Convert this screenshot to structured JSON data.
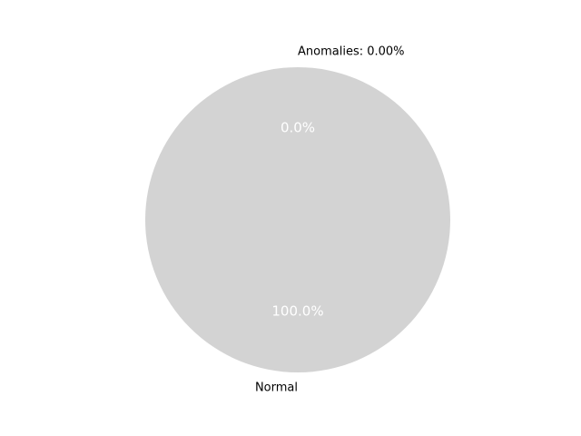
{
  "chart_data": {
    "type": "pie",
    "slices": [
      {
        "label": "Anomalies: 0.00%",
        "value": 0.0,
        "pct_label": "0.0%",
        "color": "#ff0000"
      },
      {
        "label": "Normal",
        "value": 100.0,
        "pct_label": "100.0%",
        "color": "#d3d3d3"
      }
    ],
    "start_angle_deg": 90,
    "direction": "counterclockwise"
  }
}
